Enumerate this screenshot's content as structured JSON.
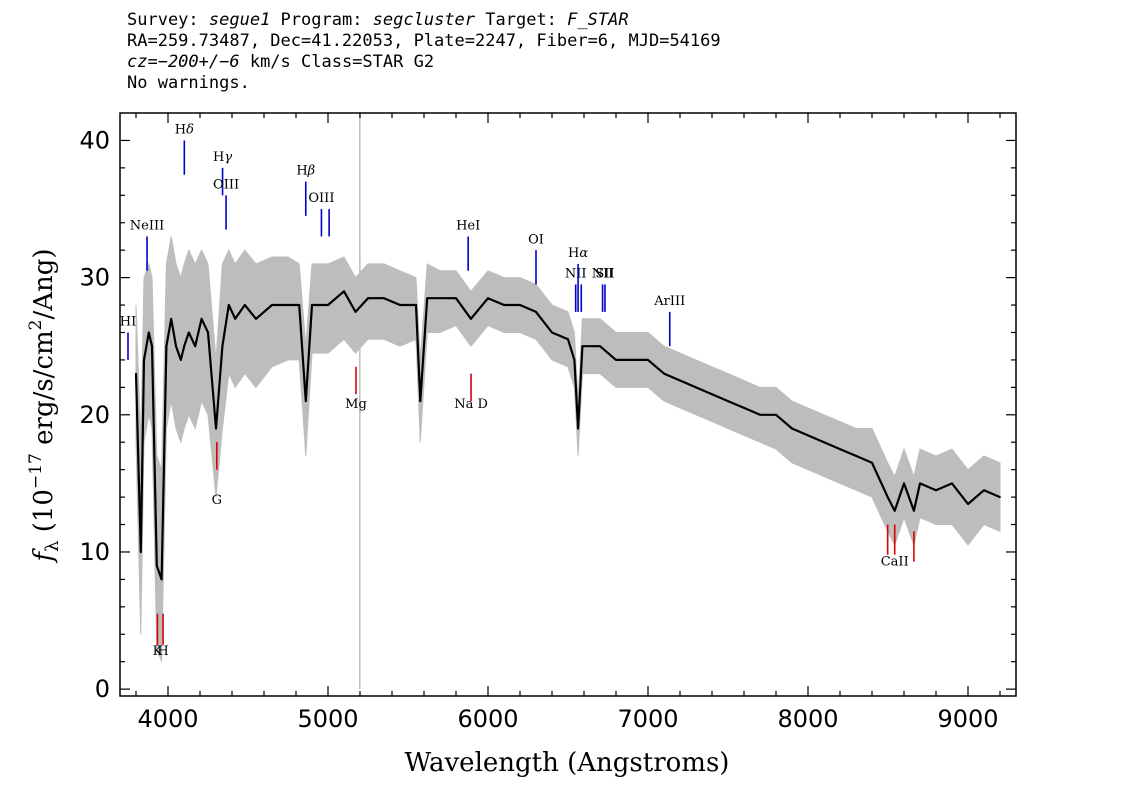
{
  "header": {
    "line1": {
      "survey_label": "Survey: ",
      "survey": "segue1",
      "program_label": " Program: ",
      "program": "segcluster",
      "target_label": " Target: ",
      "target": "F_STAR"
    },
    "line2": "RA=259.73487, Dec=41.22053, Plate=2247, Fiber=6, MJD=54169",
    "line3": {
      "cz": "cz=−200+/−6",
      "rest": " km/s Class=STAR G2"
    },
    "line4": "No warnings."
  },
  "chart_data": {
    "type": "line",
    "xlabel": "Wavelength (Angstroms)",
    "ylabel": {
      "f": "f",
      "sub": "λ",
      "pre": " (10",
      "exp": "−17",
      "mid": " erg/s/cm",
      "exp2": "2",
      "post": "/Ang)"
    },
    "xlim": [
      3700,
      9300
    ],
    "ylim": [
      -0.5,
      42
    ],
    "x_ticks": [
      4000,
      5000,
      6000,
      7000,
      8000,
      9000
    ],
    "x_tick_labels": [
      "4000",
      "5000",
      "6000",
      "7000",
      "8000",
      "9000"
    ],
    "y_ticks": [
      0,
      10,
      20,
      30,
      40
    ],
    "y_tick_labels": [
      "0",
      "10",
      "20",
      "30",
      "40"
    ],
    "series": [
      {
        "color": "#000000",
        "x": [
          3800,
          3830,
          3850,
          3880,
          3900,
          3930,
          3960,
          3990,
          4020,
          4050,
          4080,
          4101,
          4130,
          4170,
          4210,
          4250,
          4300,
          4340,
          4380,
          4420,
          4480,
          4550,
          4650,
          4750,
          4820,
          4861,
          4900,
          5000,
          5100,
          5172,
          5250,
          5350,
          5450,
          5550,
          5577,
          5620,
          5700,
          5800,
          5893,
          6000,
          6100,
          6200,
          6300,
          6400,
          6500,
          6540,
          6563,
          6590,
          6700,
          6800,
          6900,
          7000,
          7100,
          7200,
          7300,
          7400,
          7500,
          7600,
          7700,
          7800,
          7900,
          8000,
          8100,
          8200,
          8300,
          8400,
          8498,
          8542,
          8600,
          8662,
          8700,
          8800,
          8900,
          9000,
          9100,
          9200
        ],
        "y": [
          23,
          10,
          24,
          26,
          25,
          9,
          8,
          25,
          27,
          25,
          24,
          25,
          26,
          25,
          27,
          26,
          19,
          25,
          28,
          27,
          28,
          27,
          28,
          28,
          28,
          21,
          28,
          28,
          29,
          27.5,
          28.5,
          28.5,
          28,
          28,
          21,
          28.5,
          28.5,
          28.5,
          27,
          28.5,
          28,
          28,
          27.5,
          26,
          25.5,
          24,
          19,
          25,
          25,
          24,
          24,
          24,
          23,
          22.5,
          22,
          21.5,
          21,
          20.5,
          20,
          20,
          19,
          18.5,
          18,
          17.5,
          17,
          16.5,
          14,
          13,
          15,
          13,
          15,
          14.5,
          15,
          13.5,
          14.5,
          14
        ]
      }
    ],
    "noise": {
      "color": "#bdbdbd",
      "x": [
        3800,
        3830,
        3850,
        3880,
        3900,
        3930,
        3960,
        3990,
        4020,
        4050,
        4080,
        4101,
        4130,
        4170,
        4210,
        4250,
        4300,
        4340,
        4380,
        4420,
        4480,
        4550,
        4650,
        4750,
        4820,
        4861,
        4900,
        5000,
        5100,
        5172,
        5250,
        5350,
        5450,
        5550,
        5577,
        5620,
        5700,
        5800,
        5893,
        6000,
        6100,
        6200,
        6300,
        6400,
        6500,
        6540,
        6563,
        6590,
        6700,
        6800,
        6900,
        7000,
        7100,
        7200,
        7300,
        7400,
        7500,
        7600,
        7700,
        7800,
        7900,
        8000,
        8100,
        8200,
        8300,
        8400,
        8498,
        8542,
        8600,
        8662,
        8700,
        8800,
        8900,
        9000,
        9100,
        9200
      ],
      "upper": [
        28,
        18,
        30,
        31,
        30,
        17,
        16,
        31,
        33,
        31,
        30,
        31,
        32,
        31,
        32,
        31,
        24,
        31,
        32,
        31,
        32,
        31,
        31.5,
        31.5,
        31,
        25,
        31,
        31,
        31.5,
        30,
        31,
        31,
        30.5,
        30,
        24,
        31,
        30.5,
        30.5,
        29,
        30.5,
        30,
        30,
        29.5,
        28,
        27.5,
        26,
        21,
        27,
        27,
        26,
        26,
        26,
        25,
        24.5,
        24,
        23.5,
        23,
        22.5,
        22,
        22,
        21,
        20.5,
        20,
        19.5,
        19,
        19,
        16.5,
        15.5,
        17.5,
        15.5,
        17.5,
        17,
        17.5,
        16,
        17,
        16.5
      ],
      "lower": [
        18,
        4,
        18,
        20,
        19,
        3,
        2,
        19,
        21,
        19,
        18,
        19,
        20,
        19,
        21,
        20,
        14,
        19,
        23,
        22,
        23,
        22,
        23.5,
        24,
        24,
        17,
        24.5,
        24.5,
        25.5,
        24.5,
        25.5,
        25.5,
        25,
        25.5,
        18,
        26,
        26,
        26.5,
        25,
        26.5,
        26,
        26,
        25.5,
        24,
        23.5,
        22,
        17,
        23,
        23,
        22,
        22,
        22,
        21,
        20.5,
        20,
        19.5,
        19,
        18.5,
        18,
        17.5,
        16.5,
        16,
        15.5,
        15,
        14.5,
        14,
        11.5,
        10.5,
        12.5,
        10.5,
        12.5,
        12,
        12,
        10.5,
        12,
        11.5
      ]
    },
    "spike": {
      "x": 5199,
      "color": "#bdbdbd"
    },
    "emission_lines": [
      {
        "label": "HI",
        "x": 3750,
        "label_y": 26.5,
        "y_top": 26,
        "y_bot": 24,
        "italic_suffix": ""
      },
      {
        "label": "NeIII",
        "x": 3869,
        "label_y": 33.5,
        "y_top": 33,
        "y_bot": 30.5,
        "italic_suffix": ""
      },
      {
        "label": "H",
        "x": 4102,
        "label_y": 40.5,
        "y_top": 40,
        "y_bot": 37.5,
        "italic_suffix": "δ"
      },
      {
        "label": "H",
        "x": 4341,
        "label_y": 38.5,
        "y_top": 38,
        "y_bot": 36,
        "italic_suffix": "γ"
      },
      {
        "label": "OIII",
        "x": 4363,
        "label_y": 36.5,
        "y_top": 36,
        "y_bot": 33.5,
        "italic_suffix": ""
      },
      {
        "label": "H",
        "x": 4861,
        "label_y": 37.5,
        "y_top": 37,
        "y_bot": 34.5,
        "italic_suffix": "β"
      },
      {
        "label": "OIII",
        "x": 4959,
        "label_y": 35.5,
        "y_top": 35,
        "y_bot": 33,
        "italic_suffix": ""
      },
      {
        "label": "",
        "x": 5007,
        "label_y": 0,
        "y_top": 35,
        "y_bot": 33,
        "italic_suffix": ""
      },
      {
        "label": "HeI",
        "x": 5876,
        "label_y": 33.5,
        "y_top": 33,
        "y_bot": 30.5,
        "italic_suffix": ""
      },
      {
        "label": "OI",
        "x": 6300,
        "label_y": 32.5,
        "y_top": 32,
        "y_bot": 29.5,
        "italic_suffix": ""
      },
      {
        "label": "NII",
        "x": 6548,
        "label_y": 30,
        "y_top": 29.5,
        "y_bot": 27.5,
        "italic_suffix": ""
      },
      {
        "label": "H",
        "x": 6563,
        "label_y": 31.5,
        "y_top": 31,
        "y_bot": 27.5,
        "italic_suffix": "α"
      },
      {
        "label": "",
        "x": 6583,
        "label_y": 0,
        "y_top": 29.5,
        "y_bot": 27.5,
        "italic_suffix": ""
      },
      {
        "label": "NII",
        "x": 6716,
        "label_y": 30,
        "y_top": 29.5,
        "y_bot": 27.5,
        "italic_suffix": ""
      },
      {
        "label": "SII",
        "x": 6731,
        "label_y": 30,
        "y_top": 29.5,
        "y_bot": 27.5,
        "italic_suffix": ""
      },
      {
        "label": "ArIII",
        "x": 7136,
        "label_y": 28,
        "y_top": 27.5,
        "y_bot": 25,
        "italic_suffix": ""
      }
    ],
    "absorption_lines": [
      {
        "label": "K",
        "x": 3934,
        "label_y": 2.5,
        "y_top": 5.5,
        "y_bot": 3.2
      },
      {
        "label": "H",
        "x": 3969,
        "label_y": 2.5,
        "y_top": 5.5,
        "y_bot": 3.2
      },
      {
        "label": "G",
        "x": 4305,
        "label_y": 13.5,
        "y_top": 18,
        "y_bot": 16
      },
      {
        "label": "Mg",
        "x": 5175,
        "label_y": 20.5,
        "y_top": 23.5,
        "y_bot": 21.5
      },
      {
        "label": "Na D",
        "x": 5894,
        "label_y": 20.5,
        "y_top": 23,
        "y_bot": 21
      },
      {
        "label": "",
        "x": 8498,
        "label_y": 0,
        "y_top": 12,
        "y_bot": 9.8
      },
      {
        "label": "CaII",
        "x": 8542,
        "label_y": 9,
        "y_top": 12,
        "y_bot": 9.8
      },
      {
        "label": "",
        "x": 8662,
        "label_y": 0,
        "y_top": 11.5,
        "y_bot": 9.3
      }
    ],
    "colors": {
      "emission": "#0000cc",
      "absorption": "#dd0000",
      "axes": "#000000",
      "flux": "#000000",
      "error": "#bdbdbd"
    }
  }
}
